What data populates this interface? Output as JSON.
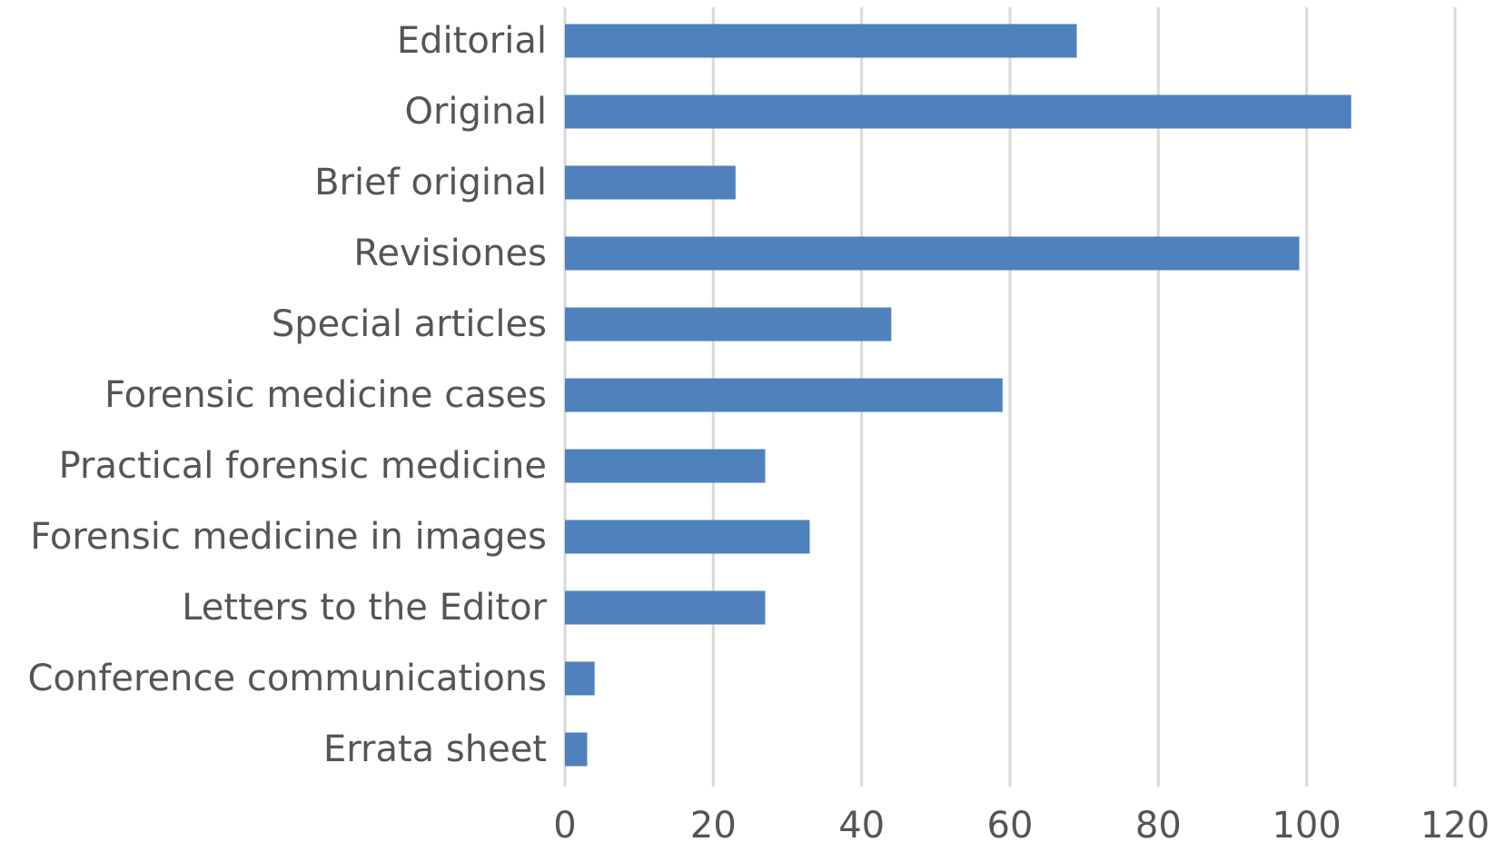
{
  "chart_data": {
    "type": "bar",
    "orientation": "horizontal",
    "title": "",
    "xlabel": "",
    "ylabel": "",
    "categories": [
      "Editorial",
      "Original",
      "Brief original",
      "Revisiones",
      "Special articles",
      "Forensic medicine cases",
      "Practical forensic medicine",
      "Forensic medicine in images",
      "Letters to the Editor",
      "Conference communications",
      "Errata sheet"
    ],
    "values": [
      69,
      106,
      23,
      99,
      44,
      59,
      27,
      33,
      27,
      4,
      3
    ],
    "xlim": [
      0,
      120
    ],
    "xticks": [
      0,
      20,
      40,
      60,
      80,
      100,
      120
    ],
    "xtick_labels": [
      "0",
      "20",
      "40",
      "60",
      "80",
      "100",
      "120"
    ],
    "grid": "vertical",
    "legend": "none",
    "bar_color": "#4f81bd"
  }
}
